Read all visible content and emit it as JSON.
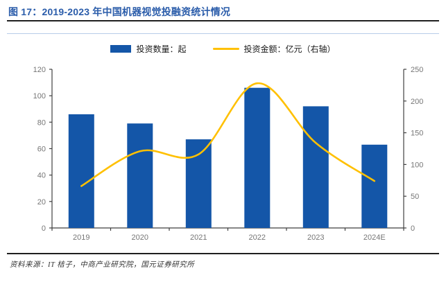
{
  "header": {
    "title": "图 17：2019-2023 年中国机器视觉投融资统计情况"
  },
  "legend": [
    {
      "label": "投资数量：起",
      "type": "bar",
      "color": "#1456a8"
    },
    {
      "label": "投资金额：亿元（右轴）",
      "type": "line",
      "color": "#ffc000"
    }
  ],
  "chart_data": {
    "type": "bar",
    "subtype": "bar-line-combo",
    "title": "2019-2023 年中国机器视觉投融资统计情况",
    "categories": [
      "2019",
      "2020",
      "2021",
      "2022",
      "2023",
      "2024E"
    ],
    "series": [
      {
        "name": "投资数量：起",
        "type": "bar",
        "axis": "left",
        "color": "#1456a8",
        "values": [
          86,
          79,
          67,
          106,
          92,
          63
        ]
      },
      {
        "name": "投资金额：亿元（右轴）",
        "type": "line",
        "axis": "right",
        "color": "#ffc000",
        "values": [
          66,
          121,
          116,
          228,
          134,
          74
        ]
      }
    ],
    "left_axis": {
      "min": 0,
      "max": 120,
      "step": 20,
      "ticks": [
        0,
        20,
        40,
        60,
        80,
        100,
        120
      ]
    },
    "right_axis": {
      "min": 0,
      "max": 250,
      "step": 50,
      "ticks": [
        0,
        50,
        100,
        150,
        200,
        250
      ]
    },
    "grid": false,
    "legend_position": "top"
  },
  "colors": {
    "title_blue": "#2a5caa",
    "bar_blue": "#1456a8",
    "line_gold": "#ffc000",
    "axis_dark": "#3f3f3f",
    "tick_label_gray": "#757575",
    "rule_dark": "#1f1f1f",
    "frame_light_blue": "#b7cde8"
  },
  "footer": {
    "source": "资料来源：IT 桔子，中商产业研究院，国元证券研究所"
  }
}
